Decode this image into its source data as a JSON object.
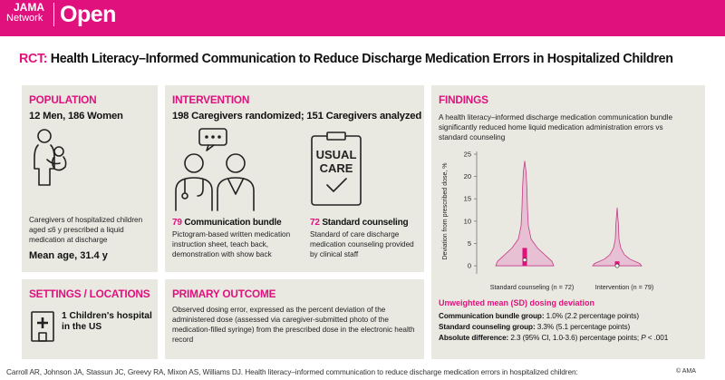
{
  "header": {
    "logo_line1": "JAMA",
    "logo_line2": "Network",
    "logo_open": "Open"
  },
  "title": {
    "prefix": "RCT:",
    "text": "Health Literacy–Informed Communication to Reduce Discharge Medication Errors in Hospitalized Children"
  },
  "population": {
    "heading": "POPULATION",
    "subheading": "12 Men, 186 Women",
    "desc": "Caregivers of hospitalized children aged ≤6 y prescribed a liquid medication at discharge",
    "mean_age": "Mean age, 31.4 y"
  },
  "intervention": {
    "heading": "INTERVENTION",
    "randomized": "198 Caregivers randomized; 151 Caregivers analyzed",
    "arm1_count": "79",
    "arm1_label": "Communication bundle",
    "arm1_desc": "Pictogram-based written medication instruction sheet, teach back, demonstration with show back",
    "arm2_count": "72",
    "arm2_label": "Standard counseling",
    "arm2_desc": "Standard of care discharge medication counseling provided by clinical staff",
    "card_line1": "USUAL",
    "card_line2": "CARE"
  },
  "settings": {
    "heading": "SETTINGS / LOCATIONS",
    "text": "1 Children's hospital in the US"
  },
  "outcome": {
    "heading": "PRIMARY OUTCOME",
    "text": "Observed dosing error, expressed as the percent deviation of the administered dose (assessed via caregiver-submitted photo of the medication-filled syringe) from the prescribed dose in the electronic health record"
  },
  "findings": {
    "heading": "FINDINGS",
    "summary": "A health literacy–informed discharge medication communication bundle significantly reduced home liquid medication administration errors vs standard counseling",
    "weighted_label": "Unweighted mean (SD) dosing deviation",
    "res1_label": "Communication bundle group:",
    "res1_value": "1.0% (2.2 percentage points)",
    "res2_label": "Standard counseling group:",
    "res2_value": "3.3% (5.1 percentage points)",
    "res3_label": "Absolute difference:",
    "res3_value": "2.3 (95% CI, 1.0-3.6) percentage points;",
    "res3_p": "P",
    "res3_p_value": "< .001"
  },
  "chart_data": {
    "type": "violin",
    "title": "",
    "ylabel": "Deviation from prescribed dose, %",
    "ylim": [
      -1,
      25
    ],
    "yticks": [
      0,
      5,
      10,
      15,
      20,
      25
    ],
    "categories": [
      "Standard counseling (n = 72)",
      "Intervention (n = 79)"
    ],
    "series": [
      {
        "name": "Standard counseling (n = 72)",
        "min": 0,
        "q1": 0,
        "median": 1.3,
        "q3": 4,
        "max": 23.5,
        "mean": 3.3
      },
      {
        "name": "Intervention (n = 79)",
        "min": 0,
        "q1": 0,
        "median": 0,
        "q3": 1,
        "max": 13,
        "mean": 1.0
      }
    ],
    "colors": {
      "violin": "#e8c0d4",
      "violin_stroke": "#c43a87",
      "box": "#e0117d"
    }
  },
  "footer": {
    "citation": "Carroll AR, Johnson JA, Stassun JC, Greevy RA, Mixon AS, Williams DJ. Health literacy–informed communication to reduce discharge medication errors in hospitalized children:",
    "copyright": "© AMA"
  }
}
